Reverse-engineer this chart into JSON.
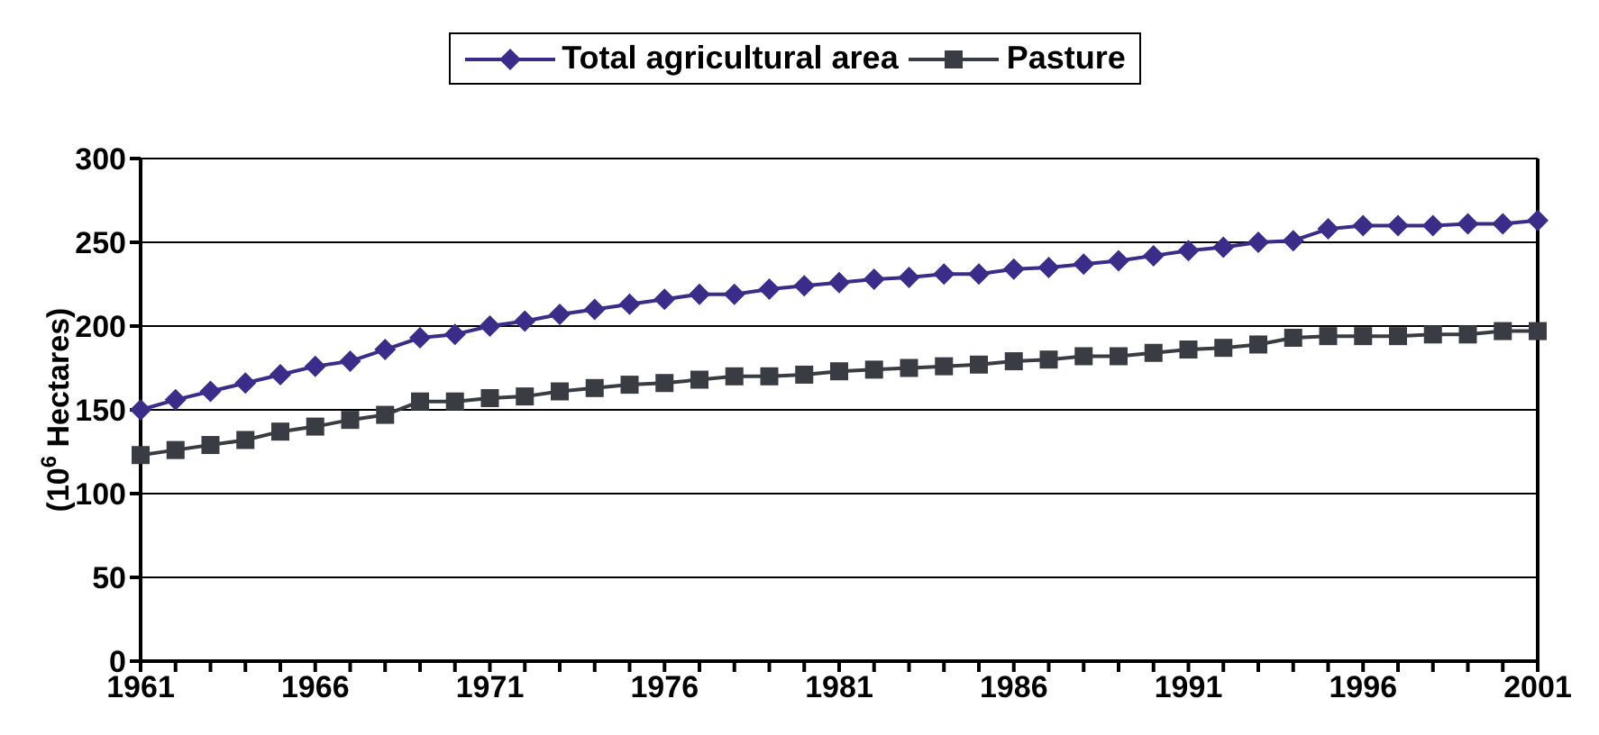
{
  "chart_data": {
    "type": "line",
    "ylabel": "(10$^{6}$ Hectares)",
    "categories": [
      "1961",
      null,
      null,
      null,
      null,
      "1966",
      null,
      null,
      null,
      null,
      "1971",
      null,
      null,
      null,
      null,
      "1976",
      null,
      null,
      null,
      null,
      "1981",
      null,
      null,
      null,
      null,
      "1986",
      null,
      null,
      null,
      null,
      "1991",
      null,
      null,
      null,
      null,
      "1996",
      null,
      null,
      null,
      null,
      "2001"
    ],
    "series": [
      {
        "name": "Total agricultural area",
        "color": "#3a2d8a",
        "marker": "diamond",
        "values": [
          150,
          156,
          161,
          166,
          171,
          176,
          179,
          186,
          193,
          195,
          200,
          203,
          207,
          210,
          213,
          216,
          219,
          219,
          222,
          224,
          226,
          228,
          229,
          231,
          231,
          234,
          235,
          237,
          239,
          242,
          245,
          247,
          250,
          251,
          258,
          260,
          260,
          260,
          261,
          261,
          263
        ]
      },
      {
        "name": "Pasture",
        "color": "#3a3c44",
        "marker": "square",
        "values": [
          123,
          126,
          129,
          132,
          137,
          140,
          144,
          147,
          155,
          155,
          157,
          158,
          161,
          163,
          165,
          166,
          168,
          170,
          170,
          171,
          173,
          174,
          175,
          176,
          177,
          179,
          180,
          182,
          182,
          184,
          186,
          187,
          189,
          193,
          194,
          194,
          194,
          195,
          195,
          197,
          197
        ]
      }
    ],
    "ylim": [
      0,
      300
    ],
    "yticks": [
      0,
      50,
      100,
      150,
      200,
      250,
      300
    ],
    "grid": "y",
    "legend": "top"
  }
}
